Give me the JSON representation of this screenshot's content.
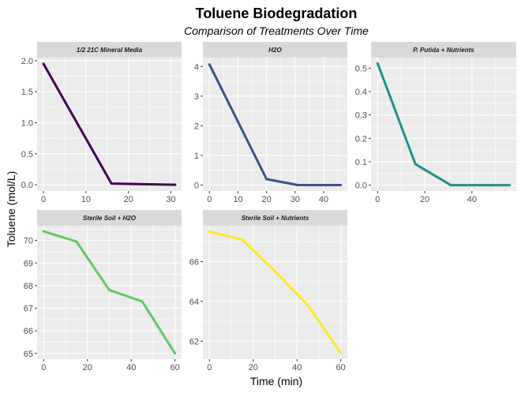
{
  "chart_data": {
    "type": "line",
    "title": "Toluene Biodegradation",
    "subtitle": "Comparison of Treatments Over Time",
    "xlabel": "Time (min)",
    "ylabel": "Toluene (mol/L)",
    "layout": "facet grid 3 columns x 2 rows, independent scales",
    "grid": true,
    "panels": [
      {
        "name": "1/2 21C Mineral Media",
        "color": "#440154",
        "x": [
          0,
          16,
          31
        ],
        "y": [
          1.95,
          0.02,
          0.0
        ],
        "xlim": [
          -1.5,
          32.5
        ],
        "ylim": [
          -0.1,
          2.05
        ],
        "xticks": [
          0,
          10,
          20,
          30
        ],
        "yticks": [
          0.0,
          0.5,
          1.0,
          1.5,
          2.0
        ],
        "ytick_labels": [
          "0.0",
          "0.5",
          "1.0",
          "1.5",
          "2.0"
        ]
      },
      {
        "name": "H2O",
        "color": "#3b528b",
        "x": [
          0,
          20,
          31,
          46
        ],
        "y": [
          4.07,
          0.2,
          0.0,
          0.0
        ],
        "xlim": [
          -2.3,
          48.3
        ],
        "ylim": [
          -0.2,
          4.3
        ],
        "xticks": [
          0,
          10,
          20,
          30,
          40
        ],
        "yticks": [
          0,
          1,
          2,
          3,
          4
        ],
        "ytick_labels": [
          "0",
          "1",
          "2",
          "3",
          "4"
        ]
      },
      {
        "name": "P. Putida + Nutrients",
        "color": "#21908c",
        "x": [
          0,
          16,
          31,
          56
        ],
        "y": [
          0.52,
          0.09,
          0.0,
          0.0
        ],
        "xlim": [
          -2.8,
          58.8
        ],
        "ylim": [
          -0.025,
          0.545
        ],
        "xticks": [
          0,
          20,
          40
        ],
        "yticks": [
          0.0,
          0.1,
          0.2,
          0.3,
          0.4,
          0.5
        ],
        "ytick_labels": [
          "0.0",
          "0.1",
          "0.2",
          "0.3",
          "0.4",
          "0.5"
        ]
      },
      {
        "name": "Sterile Soil + H2O",
        "color": "#5ec962",
        "x": [
          0,
          15,
          30,
          45,
          60
        ],
        "y": [
          70.4,
          69.95,
          67.8,
          67.3,
          65.0
        ],
        "xlim": [
          -3,
          63
        ],
        "ylim": [
          64.75,
          70.65
        ],
        "xticks": [
          0,
          20,
          40,
          60
        ],
        "yticks": [
          65,
          66,
          67,
          68,
          69,
          70
        ],
        "ytick_labels": [
          "65",
          "66",
          "67",
          "68",
          "69",
          "70"
        ]
      },
      {
        "name": "Sterile Soil + Nutrients",
        "color": "#fde725",
        "x": [
          0,
          15,
          30,
          45,
          60
        ],
        "y": [
          67.5,
          67.1,
          65.5,
          63.8,
          61.4
        ],
        "xlim": [
          -3,
          63
        ],
        "ylim": [
          61.1,
          67.8
        ],
        "xticks": [
          0,
          20,
          40,
          60
        ],
        "yticks": [
          62,
          64,
          66
        ],
        "ytick_labels": [
          "62",
          "64",
          "66"
        ]
      }
    ]
  }
}
